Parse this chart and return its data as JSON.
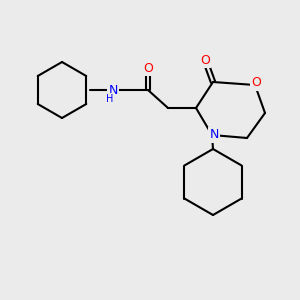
{
  "bg_color": "#ebebeb",
  "bond_color": "#000000",
  "bond_width": 1.5,
  "atom_colors": {
    "O": "#ff0000",
    "N": "#0000ff",
    "C": "#000000"
  },
  "font_size_atom": 9,
  "font_size_h": 8
}
